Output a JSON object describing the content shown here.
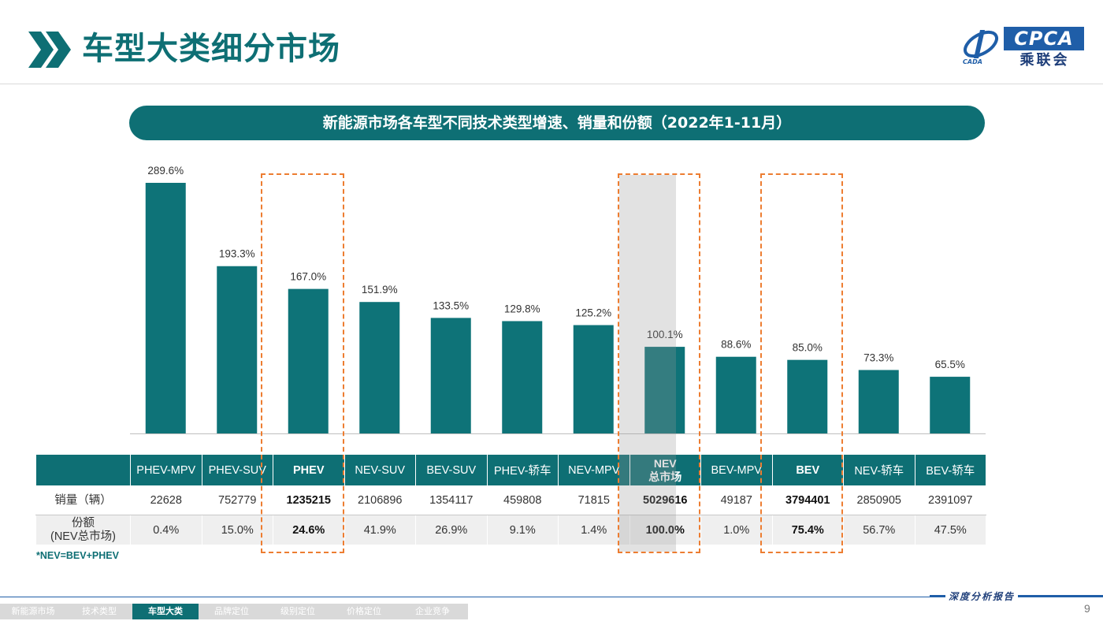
{
  "header": {
    "title": "车型大类细分市场"
  },
  "logo": {
    "text": "CPCA",
    "sub": "乘联会",
    "mark": "CADA"
  },
  "banner": {
    "text": "新能源市场各车型不同技术类型增速、销量和份额（2022年1-11月）"
  },
  "chart_data": {
    "type": "bar",
    "title": "新能源市场各车型不同技术类型增速、销量和份额（2022年1-11月）",
    "categories": [
      "PHEV-MPV",
      "PHEV-SUV",
      "PHEV",
      "NEV-SUV",
      "BEV-SUV",
      "PHEV-轿车",
      "NEV-MPV",
      "NEV总市场",
      "BEV-MPV",
      "BEV",
      "NEV-轿车",
      "BEV-轿车"
    ],
    "values": [
      289.6,
      193.3,
      167.0,
      151.9,
      133.5,
      129.8,
      125.2,
      100.1,
      88.6,
      85.0,
      73.3,
      65.5
    ],
    "value_labels": [
      "289.6%",
      "193.3%",
      "167.0%",
      "151.9%",
      "133.5%",
      "129.8%",
      "125.2%",
      "100.1%",
      "88.6%",
      "85.0%",
      "73.3%",
      "65.5%"
    ],
    "unit": "%",
    "ylim": [
      0,
      300
    ],
    "bar_color": "#0e7378",
    "highlight_color": "#ed7d31",
    "highlighted": [
      "PHEV",
      "NEV总市场",
      "BEV"
    ],
    "grid": false
  },
  "table": {
    "columns": [
      "PHEV-MPV",
      "PHEV-SUV",
      "PHEV",
      "NEV-SUV",
      "BEV-SUV",
      "PHEV-轿车",
      "NEV-MPV",
      "NEV总市场",
      "BEV-MPV",
      "BEV",
      "NEV-轿车",
      "BEV-轿车"
    ],
    "nev_header": {
      "line1": "NEV",
      "line2": "总市场"
    },
    "rows": [
      {
        "label": "销量（辆）",
        "values": [
          "22628",
          "752779",
          "1235215",
          "2106896",
          "1354117",
          "459808",
          "71815",
          "5029616",
          "49187",
          "3794401",
          "2850905",
          "2391097"
        ]
      },
      {
        "label_line1": "份额",
        "label_line2": "(NEV总市场)",
        "values": [
          "0.4%",
          "15.0%",
          "24.6%",
          "41.9%",
          "26.9%",
          "9.1%",
          "1.4%",
          "100.0%",
          "1.0%",
          "75.4%",
          "56.7%",
          "47.5%"
        ]
      }
    ]
  },
  "note": "*NEV=BEV+PHEV",
  "footer": {
    "report_label": "深度分析报告",
    "page_number": "9",
    "nav": [
      {
        "label": "新能源市场",
        "active": false
      },
      {
        "label": "技术类型",
        "active": false
      },
      {
        "label": "车型大类",
        "active": true
      },
      {
        "label": "品牌定位",
        "active": false
      },
      {
        "label": "级别定位",
        "active": false
      },
      {
        "label": "价格定位",
        "active": false
      },
      {
        "label": "企业竞争",
        "active": false
      }
    ]
  }
}
